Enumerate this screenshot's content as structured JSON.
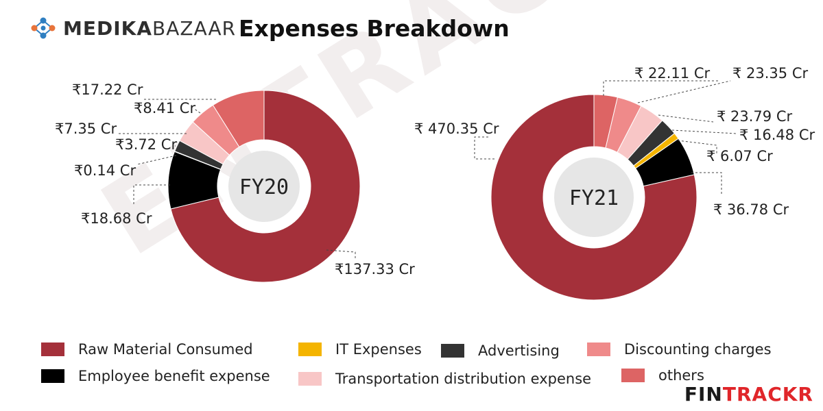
{
  "header": {
    "logo_bold": "MEDIKA",
    "logo_light": "BAZAAR",
    "title": "Expenses Breakdown"
  },
  "watermark": "ENTRACKR",
  "brand": {
    "part1": "FIN",
    "part2": "TRACKR"
  },
  "colors": {
    "Raw Material Consumed": "#a4303a",
    "IT Expenses": "#f4b400",
    "Advertising": "#333333",
    "Discounting charges": "#ef8a8a",
    "Employee benefit expense": "#000000",
    "Transportation distribution expense": "#f8c6c6",
    "others": "#dd6464"
  },
  "legend": [
    {
      "label": "Raw Material Consumed",
      "color": "#a4303a"
    },
    {
      "label": "IT Expenses",
      "color": "#f4b400"
    },
    {
      "label": "Advertising",
      "color": "#333333"
    },
    {
      "label": "Discounting charges",
      "color": "#ef8a8a"
    },
    {
      "label": "Employee benefit expense",
      "color": "#000000"
    },
    {
      "label": "Transportation distribution expense",
      "color": "#f8c6c6"
    },
    {
      "label": "others",
      "color": "#dd6464"
    }
  ],
  "chart_data": [
    {
      "type": "pie",
      "center_label": "FY20",
      "series": [
        {
          "name": "Raw Material Consumed",
          "value": 137.33,
          "label": "₹137.33 Cr"
        },
        {
          "name": "Employee benefit expense",
          "value": 18.68,
          "label": "₹18.68 Cr"
        },
        {
          "name": "IT Expenses",
          "value": 0.14,
          "label": "₹0.14 Cr"
        },
        {
          "name": "Advertising",
          "value": 3.72,
          "label": "₹3.72 Cr"
        },
        {
          "name": "Transportation distribution expense",
          "value": 7.35,
          "label": "₹7.35 Cr"
        },
        {
          "name": "Discounting charges",
          "value": 8.41,
          "label": "₹8.41 Cr"
        },
        {
          "name": "others",
          "value": 17.22,
          "label": "₹17.22 Cr"
        }
      ]
    },
    {
      "type": "pie",
      "center_label": "FY21",
      "series": [
        {
          "name": "others",
          "value": 22.11,
          "label": "₹ 22.11 Cr"
        },
        {
          "name": "Discounting charges",
          "value": 23.35,
          "label": "₹ 23.35 Cr"
        },
        {
          "name": "Transportation distribution expense",
          "value": 23.79,
          "label": "₹ 23.79 Cr"
        },
        {
          "name": "Advertising",
          "value": 16.48,
          "label": "₹ 16.48 Cr"
        },
        {
          "name": "IT Expenses",
          "value": 6.07,
          "label": "₹ 6.07 Cr"
        },
        {
          "name": "Employee benefit expense",
          "value": 36.78,
          "label": "₹ 36.78 Cr"
        },
        {
          "name": "Raw Material Consumed",
          "value": 470.35,
          "label": "₹ 470.35 Cr"
        }
      ]
    }
  ]
}
